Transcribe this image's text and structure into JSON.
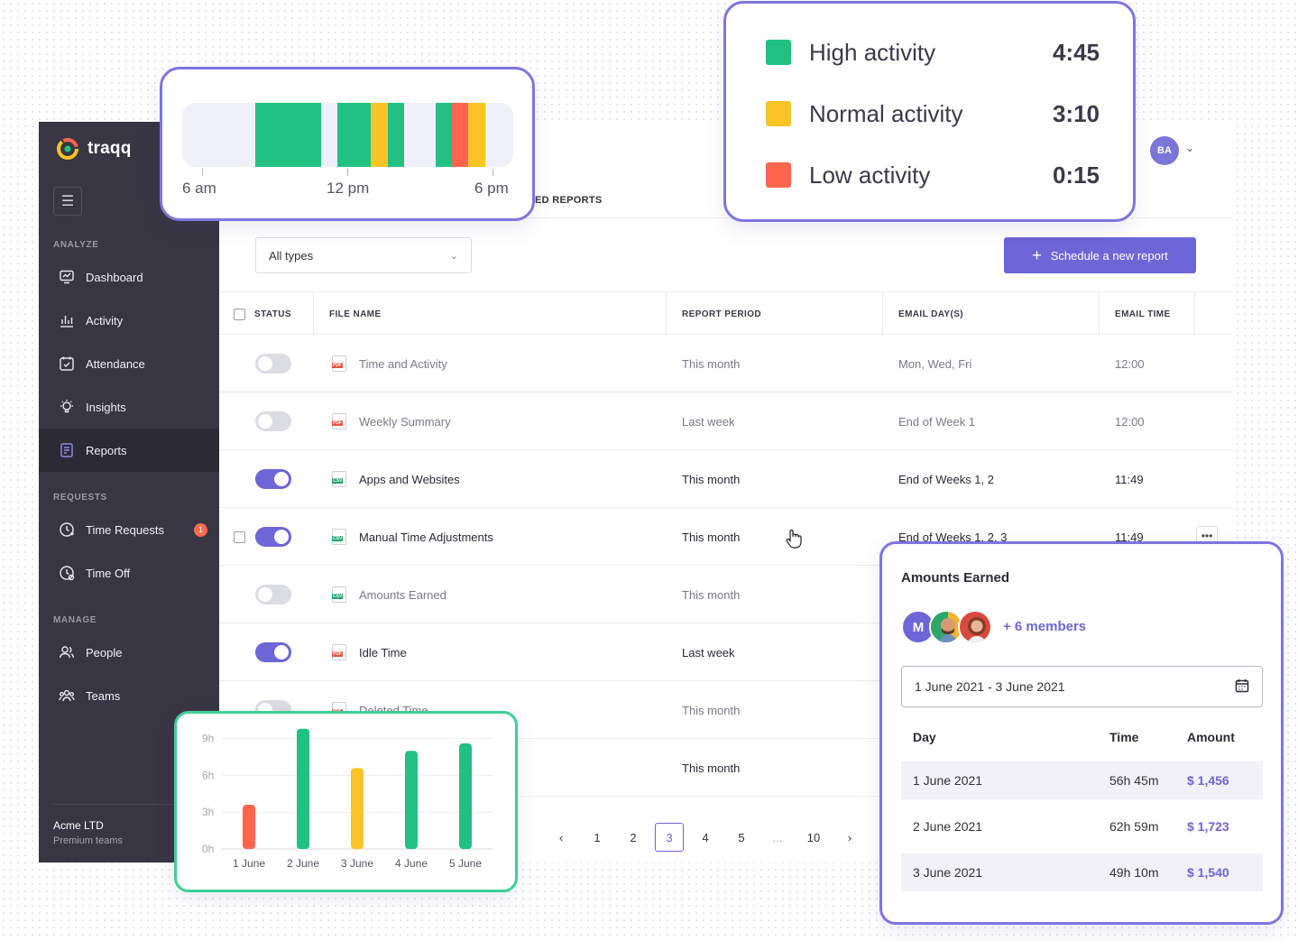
{
  "app": {
    "name": "traqq",
    "menu_icon": "hamburger-icon",
    "sections": {
      "analyze": "ANALYZE",
      "requests": "REQUESTS",
      "manage": "MANAGE"
    },
    "nav": {
      "dashboard": "Dashboard",
      "activity": "Activity",
      "attendance": "Attendance",
      "insights": "Insights",
      "reports": "Reports",
      "time_requests": "Time Requests",
      "time_requests_badge": "1",
      "time_off": "Time Off",
      "people": "People",
      "teams": "Teams"
    },
    "org": {
      "name": "Acme LTD",
      "plan": "Premium teams"
    },
    "user_initials": "BA"
  },
  "tab_label": "ED REPORTS",
  "filter": {
    "selected": "All types"
  },
  "schedule_button": {
    "icon": "plus-icon",
    "label": "Schedule a new report"
  },
  "table": {
    "headers": {
      "status": "STATUS",
      "file_name": "FILE NAME",
      "report_period": "REPORT PERIOD",
      "email_days": "EMAIL DAY(S)",
      "email_time": "EMAIL TIME"
    },
    "rows": [
      {
        "enabled": false,
        "type": "PDF",
        "file": "Time and Activity",
        "period": "This month",
        "days": "Mon, Wed, Fri",
        "time": "12:00"
      },
      {
        "enabled": false,
        "type": "PDF",
        "file": "Weekly Summary",
        "period": "Last week",
        "days": "End of Week 1",
        "time": "12:00"
      },
      {
        "enabled": true,
        "type": "CSV",
        "file": "Apps and Websites",
        "period": "This month",
        "days": "End of Weeks 1, 2",
        "time": "11:49"
      },
      {
        "enabled": true,
        "type": "CSV",
        "file": "Manual Time Adjustments",
        "period": "This month",
        "days": "End of Weeks 1, 2, 3",
        "time": "11:49"
      },
      {
        "enabled": false,
        "type": "CSV",
        "file": "Amounts Earned",
        "period": "This month",
        "days": "",
        "time": ""
      },
      {
        "enabled": true,
        "type": "PDF",
        "file": "Idle Time",
        "period": "Last week",
        "days": "",
        "time": ""
      },
      {
        "enabled": false,
        "type": "PDF",
        "file": "Deleted Time",
        "period": "This month",
        "days": "",
        "time": ""
      },
      {
        "enabled": false,
        "type": "",
        "file": "",
        "period": "This month",
        "days": "",
        "time": ""
      }
    ],
    "more_icon": "more-horizontal-icon"
  },
  "pagination": {
    "pages": [
      "1",
      "2",
      "3",
      "4",
      "5",
      "...",
      "10"
    ],
    "current": "3"
  },
  "timeline": {
    "labels": {
      "start": "6 am",
      "mid": "12 pm",
      "end": "6 pm"
    },
    "segments": [
      {
        "from": 0.22,
        "to": 0.42,
        "color": "#21c281"
      },
      {
        "from": 0.47,
        "to": 0.57,
        "color": "#21c281"
      },
      {
        "from": 0.57,
        "to": 0.62,
        "color": "#fbc425"
      },
      {
        "from": 0.62,
        "to": 0.67,
        "color": "#21c281"
      },
      {
        "from": 0.765,
        "to": 0.815,
        "color": "#21c281"
      },
      {
        "from": 0.815,
        "to": 0.865,
        "color": "#fe654a"
      },
      {
        "from": 0.865,
        "to": 0.915,
        "color": "#fbc425"
      }
    ]
  },
  "legend": [
    {
      "label": "High activity",
      "value": "4:45",
      "color": "#21c281"
    },
    {
      "label": "Normal activity",
      "value": "3:10",
      "color": "#fbc425"
    },
    {
      "label": "Low activity",
      "value": "0:15",
      "color": "#fe654a"
    }
  ],
  "chart_data": {
    "type": "bar",
    "categories": [
      "1 June",
      "2 June",
      "3 June",
      "4 June",
      "5 June"
    ],
    "values": [
      3.6,
      9.8,
      6.6,
      8.0,
      8.6
    ],
    "colors": [
      "#fe654a",
      "#21c281",
      "#fbc425",
      "#21c281",
      "#21c281"
    ],
    "yticks": [
      "9h",
      "6h",
      "3h",
      "0h"
    ],
    "ytick_values": [
      9,
      6,
      3,
      0
    ],
    "ylim": [
      0,
      10
    ],
    "grid": true,
    "title": "",
    "xlabel": "",
    "ylabel": ""
  },
  "earnings": {
    "title": "Amounts Earned",
    "avatar_initial": "M",
    "members": "+ 6 members",
    "date_range": "1 June 2021 - 3 June 2021",
    "calendar_icon": "calendar-icon",
    "headers": {
      "day": "Day",
      "time": "Time",
      "amount": "Amount"
    },
    "rows": [
      {
        "day": "1 June 2021",
        "time": "56h 45m",
        "amount": "$ 1,456"
      },
      {
        "day": "2 June 2021",
        "time": "62h 59m",
        "amount": "$ 1,723"
      },
      {
        "day": "3 June 2021",
        "time": "49h 10m",
        "amount": "$ 1,540"
      }
    ]
  }
}
